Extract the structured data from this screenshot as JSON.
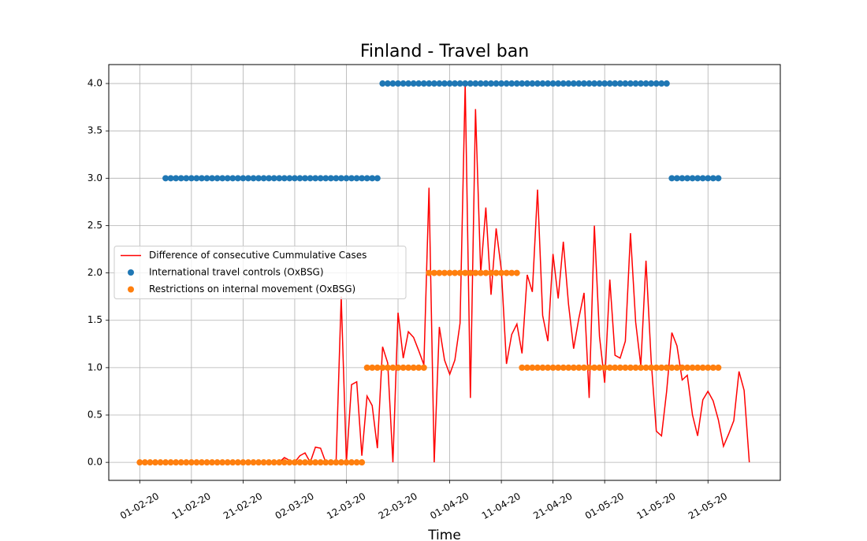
{
  "chart_data": {
    "type": "line",
    "title": "Finland - Travel ban",
    "xlabel": "Time",
    "x": [
      "01-02-20",
      "02-02-20",
      "03-02-20",
      "04-02-20",
      "05-02-20",
      "06-02-20",
      "07-02-20",
      "08-02-20",
      "09-02-20",
      "10-02-20",
      "11-02-20",
      "12-02-20",
      "13-02-20",
      "14-02-20",
      "15-02-20",
      "16-02-20",
      "17-02-20",
      "18-02-20",
      "19-02-20",
      "20-02-20",
      "21-02-20",
      "22-02-20",
      "23-02-20",
      "24-02-20",
      "25-02-20",
      "26-02-20",
      "27-02-20",
      "28-02-20",
      "29-02-20",
      "01-03-20",
      "02-03-20",
      "03-03-20",
      "04-03-20",
      "05-03-20",
      "06-03-20",
      "07-03-20",
      "08-03-20",
      "09-03-20",
      "10-03-20",
      "11-03-20",
      "12-03-20",
      "13-03-20",
      "14-03-20",
      "15-03-20",
      "16-03-20",
      "17-03-20",
      "18-03-20",
      "19-03-20",
      "20-03-20",
      "21-03-20",
      "22-03-20",
      "23-03-20",
      "24-03-20",
      "25-03-20",
      "26-03-20",
      "27-03-20",
      "28-03-20",
      "29-03-20",
      "30-03-20",
      "31-03-20",
      "01-04-20",
      "02-04-20",
      "03-04-20",
      "04-04-20",
      "05-04-20",
      "06-04-20",
      "07-04-20",
      "08-04-20",
      "09-04-20",
      "10-04-20",
      "11-04-20",
      "12-04-20",
      "13-04-20",
      "14-04-20",
      "15-04-20",
      "16-04-20",
      "17-04-20",
      "18-04-20",
      "19-04-20",
      "20-04-20",
      "21-04-20",
      "22-04-20",
      "23-04-20",
      "24-04-20",
      "25-04-20",
      "26-04-20",
      "27-04-20",
      "28-04-20",
      "29-04-20",
      "30-04-20",
      "01-05-20",
      "02-05-20",
      "03-05-20",
      "04-05-20",
      "05-05-20",
      "06-05-20",
      "07-05-20",
      "08-05-20",
      "09-05-20",
      "10-05-20",
      "11-05-20",
      "12-05-20",
      "13-05-20",
      "14-05-20",
      "15-05-20",
      "16-05-20",
      "17-05-20",
      "18-05-20",
      "19-05-20",
      "20-05-20",
      "21-05-20",
      "22-05-20",
      "23-05-20",
      "24-05-20",
      "25-05-20",
      "26-05-20",
      "27-05-20",
      "28-05-20",
      "29-05-20"
    ],
    "series": [
      {
        "name": "Difference of consecutive Cummulative Cases",
        "mode": "line",
        "color": "#ff0000",
        "values": [
          0,
          0,
          0,
          0,
          0,
          0,
          0,
          0,
          0,
          0,
          0,
          0,
          0,
          0,
          0,
          0,
          0,
          0,
          0,
          0,
          0,
          0,
          0,
          0,
          0,
          0,
          0,
          0,
          0.05,
          0.02,
          0,
          0.07,
          0.1,
          0,
          0.16,
          0.15,
          0,
          0,
          0,
          1.75,
          0,
          0.82,
          0.85,
          0.07,
          0.7,
          0.6,
          0.15,
          1.22,
          1.05,
          0,
          1.58,
          1.1,
          1.38,
          1.32,
          1.18,
          1.03,
          2.9,
          0,
          1.43,
          1.08,
          0.93,
          1.08,
          1.47,
          4.0,
          0.68,
          3.73,
          2.0,
          2.69,
          1.77,
          2.47,
          2.03,
          1.04,
          1.35,
          1.46,
          1.15,
          1.98,
          1.8,
          2.88,
          1.55,
          1.28,
          2.2,
          1.73,
          2.33,
          1.67,
          1.2,
          1.52,
          1.79,
          0.68,
          2.5,
          1.33,
          0.84,
          1.93,
          1.13,
          1.1,
          1.28,
          2.42,
          1.48,
          1.02,
          2.13,
          1.07,
          0.33,
          0.28,
          0.75,
          1.37,
          1.23,
          0.87,
          0.92,
          0.5,
          0.28,
          0.66,
          0.75,
          0.65,
          0.45,
          0.17,
          0.3,
          0.44,
          0.96,
          0.76,
          0
        ]
      },
      {
        "name": "International travel controls (OxBSG)",
        "mode": "markers",
        "color": "#1f77b4",
        "values": [
          null,
          null,
          null,
          null,
          null,
          3,
          3,
          3,
          3,
          3,
          3,
          3,
          3,
          3,
          3,
          3,
          3,
          3,
          3,
          3,
          3,
          3,
          3,
          3,
          3,
          3,
          3,
          3,
          3,
          3,
          3,
          3,
          3,
          3,
          3,
          3,
          3,
          3,
          3,
          3,
          3,
          3,
          3,
          3,
          3,
          3,
          3,
          4,
          4,
          4,
          4,
          4,
          4,
          4,
          4,
          4,
          4,
          4,
          4,
          4,
          4,
          4,
          4,
          4,
          4,
          4,
          4,
          4,
          4,
          4,
          4,
          4,
          4,
          4,
          4,
          4,
          4,
          4,
          4,
          4,
          4,
          4,
          4,
          4,
          4,
          4,
          4,
          4,
          4,
          4,
          4,
          4,
          4,
          4,
          4,
          4,
          4,
          4,
          4,
          4,
          4,
          4,
          4,
          3,
          3,
          3,
          3,
          3,
          3,
          3,
          3,
          3,
          3,
          null,
          null,
          null,
          null,
          null,
          null
        ]
      },
      {
        "name": "Restrictions on internal movement (OxBSG)",
        "mode": "markers",
        "color": "#ff7f0e",
        "values": [
          0,
          0,
          0,
          0,
          0,
          0,
          0,
          0,
          0,
          0,
          0,
          0,
          0,
          0,
          0,
          0,
          0,
          0,
          0,
          0,
          0,
          0,
          0,
          0,
          0,
          0,
          0,
          0,
          0,
          0,
          0,
          0,
          0,
          0,
          0,
          0,
          0,
          0,
          0,
          0,
          0,
          0,
          0,
          0,
          1,
          1,
          1,
          1,
          1,
          1,
          1,
          1,
          1,
          1,
          1,
          1,
          2,
          2,
          2,
          2,
          2,
          2,
          2,
          2,
          2,
          2,
          2,
          2,
          2,
          2,
          2,
          2,
          2,
          2,
          1,
          1,
          1,
          1,
          1,
          1,
          1,
          1,
          1,
          1,
          1,
          1,
          1,
          1,
          1,
          1,
          1,
          1,
          1,
          1,
          1,
          1,
          1,
          1,
          1,
          1,
          1,
          1,
          1,
          1,
          1,
          1,
          1,
          1,
          1,
          1,
          1,
          1,
          1,
          null,
          null,
          null,
          null,
          null,
          null
        ]
      }
    ],
    "xlim": [
      "26-01-20",
      "04-06-20"
    ],
    "xticks": [
      "01-02-20",
      "11-02-20",
      "21-02-20",
      "02-03-20",
      "12-03-20",
      "22-03-20",
      "01-04-20",
      "11-04-20",
      "21-04-20",
      "01-05-20",
      "11-05-20",
      "21-05-20"
    ],
    "ylim": [
      -0.19,
      4.2
    ],
    "yticks": [
      {
        "value": 0,
        "label": "0.0"
      },
      {
        "value": 0.5,
        "label": "0.5"
      },
      {
        "value": 1,
        "label": "1.0"
      },
      {
        "value": 1.5,
        "label": "1.5"
      },
      {
        "value": 2,
        "label": "2.0"
      },
      {
        "value": 2.5,
        "label": "2.5"
      },
      {
        "value": 3,
        "label": "3.0"
      },
      {
        "value": 3.5,
        "label": "3.5"
      },
      {
        "value": 4,
        "label": "4.0"
      }
    ],
    "grid": true,
    "legend": "center left"
  }
}
